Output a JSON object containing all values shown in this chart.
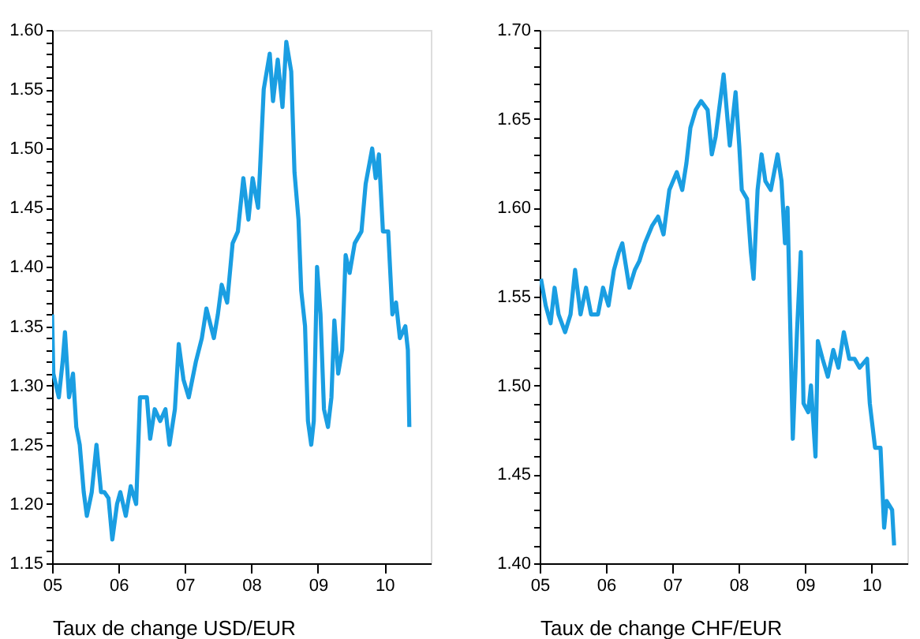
{
  "chart_data": [
    {
      "type": "line",
      "xlabel": "Taux de change USD/EUR",
      "xlim": [
        "2005-01-01",
        "2010-09-13"
      ],
      "ylim": [
        1.15,
        1.6
      ],
      "line_style": "solid",
      "marker": "none",
      "xticks": [
        {
          "value": "2005-01-01",
          "label": "05"
        },
        {
          "value": "2006-01-01",
          "label": "06"
        },
        {
          "value": "2007-01-01",
          "label": "07"
        },
        {
          "value": "2008-01-01",
          "label": "08"
        },
        {
          "value": "2009-01-01",
          "label": "09"
        },
        {
          "value": "2010-01-01",
          "label": "10"
        }
      ],
      "yticks": [
        {
          "value": 1.15,
          "label": "1.15"
        },
        {
          "value": 1.16,
          "label": null
        },
        {
          "value": 1.17,
          "label": null
        },
        {
          "value": 1.18,
          "label": null
        },
        {
          "value": 1.19,
          "label": null
        },
        {
          "value": 1.2,
          "label": "1.20"
        },
        {
          "value": 1.21,
          "label": null
        },
        {
          "value": 1.22,
          "label": null
        },
        {
          "value": 1.23,
          "label": null
        },
        {
          "value": 1.24,
          "label": null
        },
        {
          "value": 1.25,
          "label": "1.25"
        },
        {
          "value": 1.26,
          "label": null
        },
        {
          "value": 1.27,
          "label": null
        },
        {
          "value": 1.28,
          "label": null
        },
        {
          "value": 1.29,
          "label": null
        },
        {
          "value": 1.3,
          "label": "1.30"
        },
        {
          "value": 1.31,
          "label": null
        },
        {
          "value": 1.32,
          "label": null
        },
        {
          "value": 1.33,
          "label": null
        },
        {
          "value": 1.34,
          "label": null
        },
        {
          "value": 1.35,
          "label": "1.35"
        },
        {
          "value": 1.36,
          "label": null
        },
        {
          "value": 1.37,
          "label": null
        },
        {
          "value": 1.38,
          "label": null
        },
        {
          "value": 1.39,
          "label": null
        },
        {
          "value": 1.4,
          "label": "1.40"
        },
        {
          "value": 1.41,
          "label": null
        },
        {
          "value": 1.42,
          "label": null
        },
        {
          "value": 1.43,
          "label": null
        },
        {
          "value": 1.44,
          "label": null
        },
        {
          "value": 1.45,
          "label": "1.45"
        },
        {
          "value": 1.46,
          "label": null
        },
        {
          "value": 1.47,
          "label": null
        },
        {
          "value": 1.48,
          "label": null
        },
        {
          "value": 1.49,
          "label": null
        },
        {
          "value": 1.5,
          "label": "1.50"
        },
        {
          "value": 1.51,
          "label": null
        },
        {
          "value": 1.52,
          "label": null
        },
        {
          "value": 1.53,
          "label": null
        },
        {
          "value": 1.54,
          "label": null
        },
        {
          "value": 1.55,
          "label": "1.55"
        },
        {
          "value": 1.56,
          "label": null
        },
        {
          "value": 1.57,
          "label": null
        },
        {
          "value": 1.58,
          "label": null
        },
        {
          "value": 1.59,
          "label": null
        },
        {
          "value": 1.6,
          "label": "1.60"
        }
      ],
      "series": [
        {
          "color": "#1a9ee2",
          "x": [
            "2005-01-01",
            "2005-01-08",
            "2005-02-07",
            "2005-02-28",
            "2005-03-13",
            "2005-04-04",
            "2005-04-26",
            "2005-05-14",
            "2005-06-02",
            "2005-06-24",
            "2005-07-11",
            "2005-08-07",
            "2005-09-02",
            "2005-09-27",
            "2005-10-15",
            "2005-11-07",
            "2005-11-28",
            "2005-12-24",
            "2006-01-11",
            "2006-02-10",
            "2006-03-09",
            "2006-04-08",
            "2006-04-29",
            "2006-06-06",
            "2006-06-24",
            "2006-07-19",
            "2006-08-18",
            "2006-09-16",
            "2006-10-08",
            "2006-11-07",
            "2006-11-28",
            "2006-12-24",
            "2007-01-22",
            "2007-03-02",
            "2007-04-04",
            "2007-04-29",
            "2007-06-09",
            "2007-07-01",
            "2007-07-22",
            "2007-08-21",
            "2007-09-20",
            "2007-10-19",
            "2007-11-18",
            "2007-12-16",
            "2008-01-08",
            "2008-02-07",
            "2008-02-17",
            "2008-03-09",
            "2008-04-11",
            "2008-04-29",
            "2008-05-25",
            "2008-06-20",
            "2008-07-11",
            "2008-08-07",
            "2008-08-25",
            "2008-09-16",
            "2008-10-01",
            "2008-10-22",
            "2008-11-07",
            "2008-11-25",
            "2008-12-09",
            "2008-12-27",
            "2009-01-15",
            "2009-02-03",
            "2009-02-25",
            "2009-03-16",
            "2009-04-01",
            "2009-04-22",
            "2009-05-14",
            "2009-06-02",
            "2009-06-24",
            "2009-07-22",
            "2009-08-28",
            "2009-09-20",
            "2009-10-26",
            "2009-11-14",
            "2009-12-02",
            "2009-12-24",
            "2010-01-22",
            "2010-02-14",
            "2010-03-06",
            "2010-03-27",
            "2010-04-26",
            "2010-05-10",
            "2010-05-18"
          ],
          "values": [
            1.36,
            1.31,
            1.29,
            1.32,
            1.345,
            1.29,
            1.31,
            1.265,
            1.25,
            1.21,
            1.19,
            1.21,
            1.25,
            1.21,
            1.21,
            1.205,
            1.17,
            1.2,
            1.21,
            1.19,
            1.215,
            1.2,
            1.29,
            1.29,
            1.255,
            1.28,
            1.27,
            1.28,
            1.25,
            1.28,
            1.335,
            1.305,
            1.29,
            1.32,
            1.34,
            1.365,
            1.34,
            1.36,
            1.385,
            1.37,
            1.42,
            1.43,
            1.475,
            1.44,
            1.475,
            1.45,
            1.48,
            1.55,
            1.58,
            1.54,
            1.575,
            1.535,
            1.59,
            1.565,
            1.48,
            1.44,
            1.38,
            1.35,
            1.27,
            1.25,
            1.27,
            1.4,
            1.36,
            1.28,
            1.265,
            1.29,
            1.355,
            1.31,
            1.33,
            1.41,
            1.395,
            1.42,
            1.43,
            1.47,
            1.5,
            1.475,
            1.495,
            1.43,
            1.43,
            1.36,
            1.37,
            1.34,
            1.35,
            1.33,
            1.265
          ]
        }
      ]
    },
    {
      "type": "line",
      "xlabel": "Taux de change CHF/EUR",
      "xlim": [
        "2005-01-01",
        "2010-07-19"
      ],
      "ylim": [
        1.4,
        1.7
      ],
      "line_style": "solid",
      "marker": "none",
      "xticks": [
        {
          "value": "2005-01-01",
          "label": "05"
        },
        {
          "value": "2006-01-01",
          "label": "06"
        },
        {
          "value": "2007-01-01",
          "label": "07"
        },
        {
          "value": "2008-01-01",
          "label": "08"
        },
        {
          "value": "2009-01-01",
          "label": "09"
        },
        {
          "value": "2010-01-01",
          "label": "10"
        }
      ],
      "yticks": [
        {
          "value": 1.4,
          "label": "1.40"
        },
        {
          "value": 1.41,
          "label": null
        },
        {
          "value": 1.42,
          "label": null
        },
        {
          "value": 1.43,
          "label": null
        },
        {
          "value": 1.44,
          "label": null
        },
        {
          "value": 1.45,
          "label": "1.45"
        },
        {
          "value": 1.46,
          "label": null
        },
        {
          "value": 1.47,
          "label": null
        },
        {
          "value": 1.48,
          "label": null
        },
        {
          "value": 1.49,
          "label": null
        },
        {
          "value": 1.5,
          "label": "1.50"
        },
        {
          "value": 1.51,
          "label": null
        },
        {
          "value": 1.52,
          "label": null
        },
        {
          "value": 1.53,
          "label": null
        },
        {
          "value": 1.54,
          "label": null
        },
        {
          "value": 1.55,
          "label": "1.55"
        },
        {
          "value": 1.56,
          "label": null
        },
        {
          "value": 1.57,
          "label": null
        },
        {
          "value": 1.58,
          "label": null
        },
        {
          "value": 1.59,
          "label": null
        },
        {
          "value": 1.6,
          "label": "1.60"
        },
        {
          "value": 1.61,
          "label": null
        },
        {
          "value": 1.62,
          "label": null
        },
        {
          "value": 1.63,
          "label": null
        },
        {
          "value": 1.64,
          "label": null
        },
        {
          "value": 1.65,
          "label": "1.65"
        },
        {
          "value": 1.66,
          "label": null
        },
        {
          "value": 1.67,
          "label": null
        },
        {
          "value": 1.68,
          "label": null
        },
        {
          "value": 1.69,
          "label": null
        },
        {
          "value": 1.7,
          "label": "1.70"
        }
      ],
      "series": [
        {
          "color": "#1a9ee2",
          "x": [
            "2005-01-08",
            "2005-02-03",
            "2005-03-02",
            "2005-03-24",
            "2005-04-15",
            "2005-05-21",
            "2005-06-20",
            "2005-07-15",
            "2005-08-14",
            "2005-09-13",
            "2005-10-11",
            "2005-11-18",
            "2005-12-16",
            "2006-01-15",
            "2006-02-14",
            "2006-03-13",
            "2006-04-01",
            "2006-05-10",
            "2006-06-09",
            "2006-07-04",
            "2006-08-03",
            "2006-09-13",
            "2006-10-15",
            "2006-11-14",
            "2006-12-16",
            "2007-01-26",
            "2007-02-25",
            "2007-03-20",
            "2007-04-11",
            "2007-05-10",
            "2007-06-09",
            "2007-07-15",
            "2007-08-07",
            "2007-08-28",
            "2007-10-11",
            "2007-11-14",
            "2007-12-16",
            "2008-01-05",
            "2008-01-19",
            "2008-02-17",
            "2008-03-09",
            "2008-03-24",
            "2008-04-15",
            "2008-05-07",
            "2008-05-28",
            "2008-06-27",
            "2008-08-03",
            "2008-08-25",
            "2008-09-13",
            "2008-09-27",
            "2008-10-15",
            "2008-10-26",
            "2008-11-18",
            "2008-12-09",
            "2008-12-24",
            "2009-01-19",
            "2009-02-03",
            "2009-02-28",
            "2009-03-13",
            "2009-04-08",
            "2009-05-07",
            "2009-06-06",
            "2009-07-04",
            "2009-08-03",
            "2009-09-02",
            "2009-10-01",
            "2009-10-29",
            "2009-12-09",
            "2009-12-24",
            "2010-01-22",
            "2010-02-21",
            "2010-03-13",
            "2010-03-27",
            "2010-04-26",
            "2010-05-07"
          ],
          "values": [
            1.56,
            1.545,
            1.535,
            1.555,
            1.54,
            1.53,
            1.54,
            1.565,
            1.54,
            1.555,
            1.54,
            1.54,
            1.555,
            1.545,
            1.565,
            1.575,
            1.58,
            1.555,
            1.565,
            1.57,
            1.58,
            1.59,
            1.595,
            1.585,
            1.61,
            1.62,
            1.61,
            1.625,
            1.645,
            1.655,
            1.66,
            1.655,
            1.63,
            1.64,
            1.675,
            1.635,
            1.665,
            1.635,
            1.61,
            1.605,
            1.575,
            1.56,
            1.61,
            1.63,
            1.615,
            1.61,
            1.63,
            1.615,
            1.58,
            1.6,
            1.52,
            1.47,
            1.53,
            1.575,
            1.49,
            1.485,
            1.5,
            1.46,
            1.525,
            1.515,
            1.505,
            1.52,
            1.51,
            1.53,
            1.515,
            1.515,
            1.51,
            1.515,
            1.49,
            1.465,
            1.465,
            1.42,
            1.435,
            1.43,
            1.41
          ]
        }
      ]
    }
  ]
}
